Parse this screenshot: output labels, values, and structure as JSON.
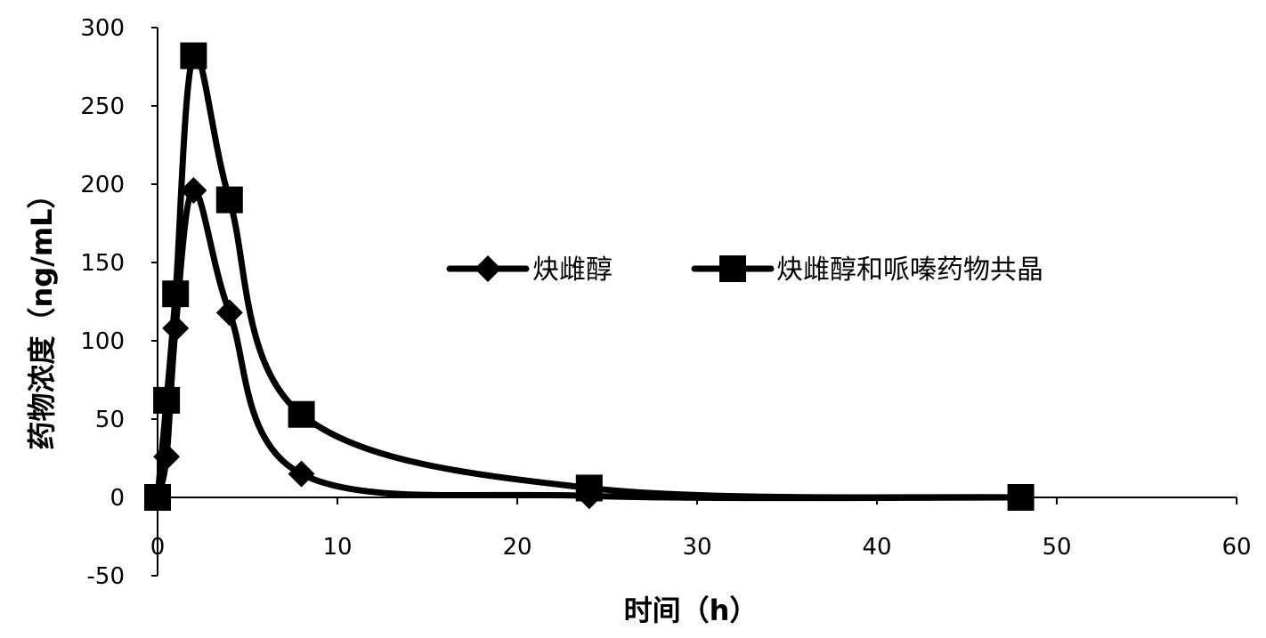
{
  "chart_data": {
    "type": "line",
    "xlabel": "时间（h）",
    "ylabel": "药物浓度（ng/mL）",
    "xlim": [
      0,
      60
    ],
    "ylim": [
      -50,
      300
    ],
    "xticks": [
      0,
      10,
      20,
      30,
      40,
      50,
      60
    ],
    "yticks": [
      -50,
      0,
      50,
      100,
      150,
      200,
      250,
      300
    ],
    "grid": false,
    "legend_position": "center-right",
    "series": [
      {
        "name": "炔雌醇",
        "marker": "diamond",
        "color": "#000000",
        "x": [
          0,
          0.5,
          1,
          2,
          4,
          8,
          24,
          48
        ],
        "y": [
          0,
          26,
          108,
          196,
          118,
          15,
          1,
          0
        ]
      },
      {
        "name": "炔雌醇和哌嗪药物共晶",
        "marker": "square",
        "color": "#000000",
        "x": [
          0,
          0.5,
          1,
          2,
          4,
          8,
          24,
          48
        ],
        "y": [
          0,
          62,
          130,
          282,
          190,
          53,
          6,
          0
        ]
      }
    ]
  }
}
